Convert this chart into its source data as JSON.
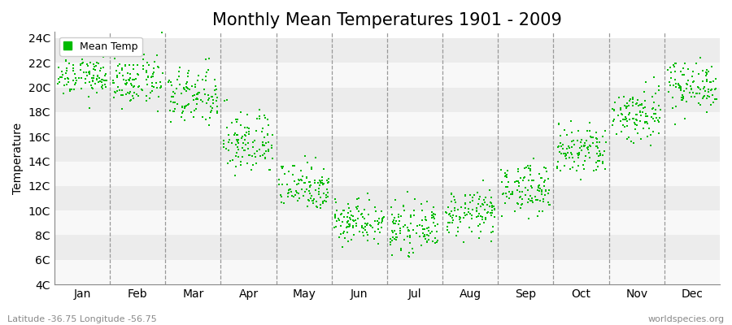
{
  "title": "Monthly Mean Temperatures 1901 - 2009",
  "ylabel": "Temperature",
  "subtitle_left": "Latitude -36.75 Longitude -56.75",
  "subtitle_right": "worldspecies.org",
  "months": [
    "Jan",
    "Feb",
    "Mar",
    "Apr",
    "May",
    "Jun",
    "Jul",
    "Aug",
    "Sep",
    "Oct",
    "Nov",
    "Dec"
  ],
  "yticks": [
    4,
    6,
    8,
    10,
    12,
    14,
    16,
    18,
    20,
    22,
    24
  ],
  "ylim": [
    4,
    24.5
  ],
  "n_years": 109,
  "monthly_means": [
    21.0,
    20.5,
    19.2,
    15.5,
    12.0,
    9.2,
    8.5,
    9.8,
    11.8,
    14.8,
    17.8,
    20.2
  ],
  "monthly_stds": [
    0.9,
    1.0,
    1.2,
    1.3,
    1.0,
    0.9,
    0.9,
    0.9,
    1.0,
    1.1,
    1.2,
    1.0
  ],
  "dot_color": "#00bb00",
  "dot_size": 3,
  "band_colors_odd": "#ececec",
  "band_colors_even": "#f8f8f8",
  "grid_color": "#999999",
  "title_fontsize": 15,
  "label_fontsize": 10,
  "tick_fontsize": 10,
  "legend_fontsize": 9
}
